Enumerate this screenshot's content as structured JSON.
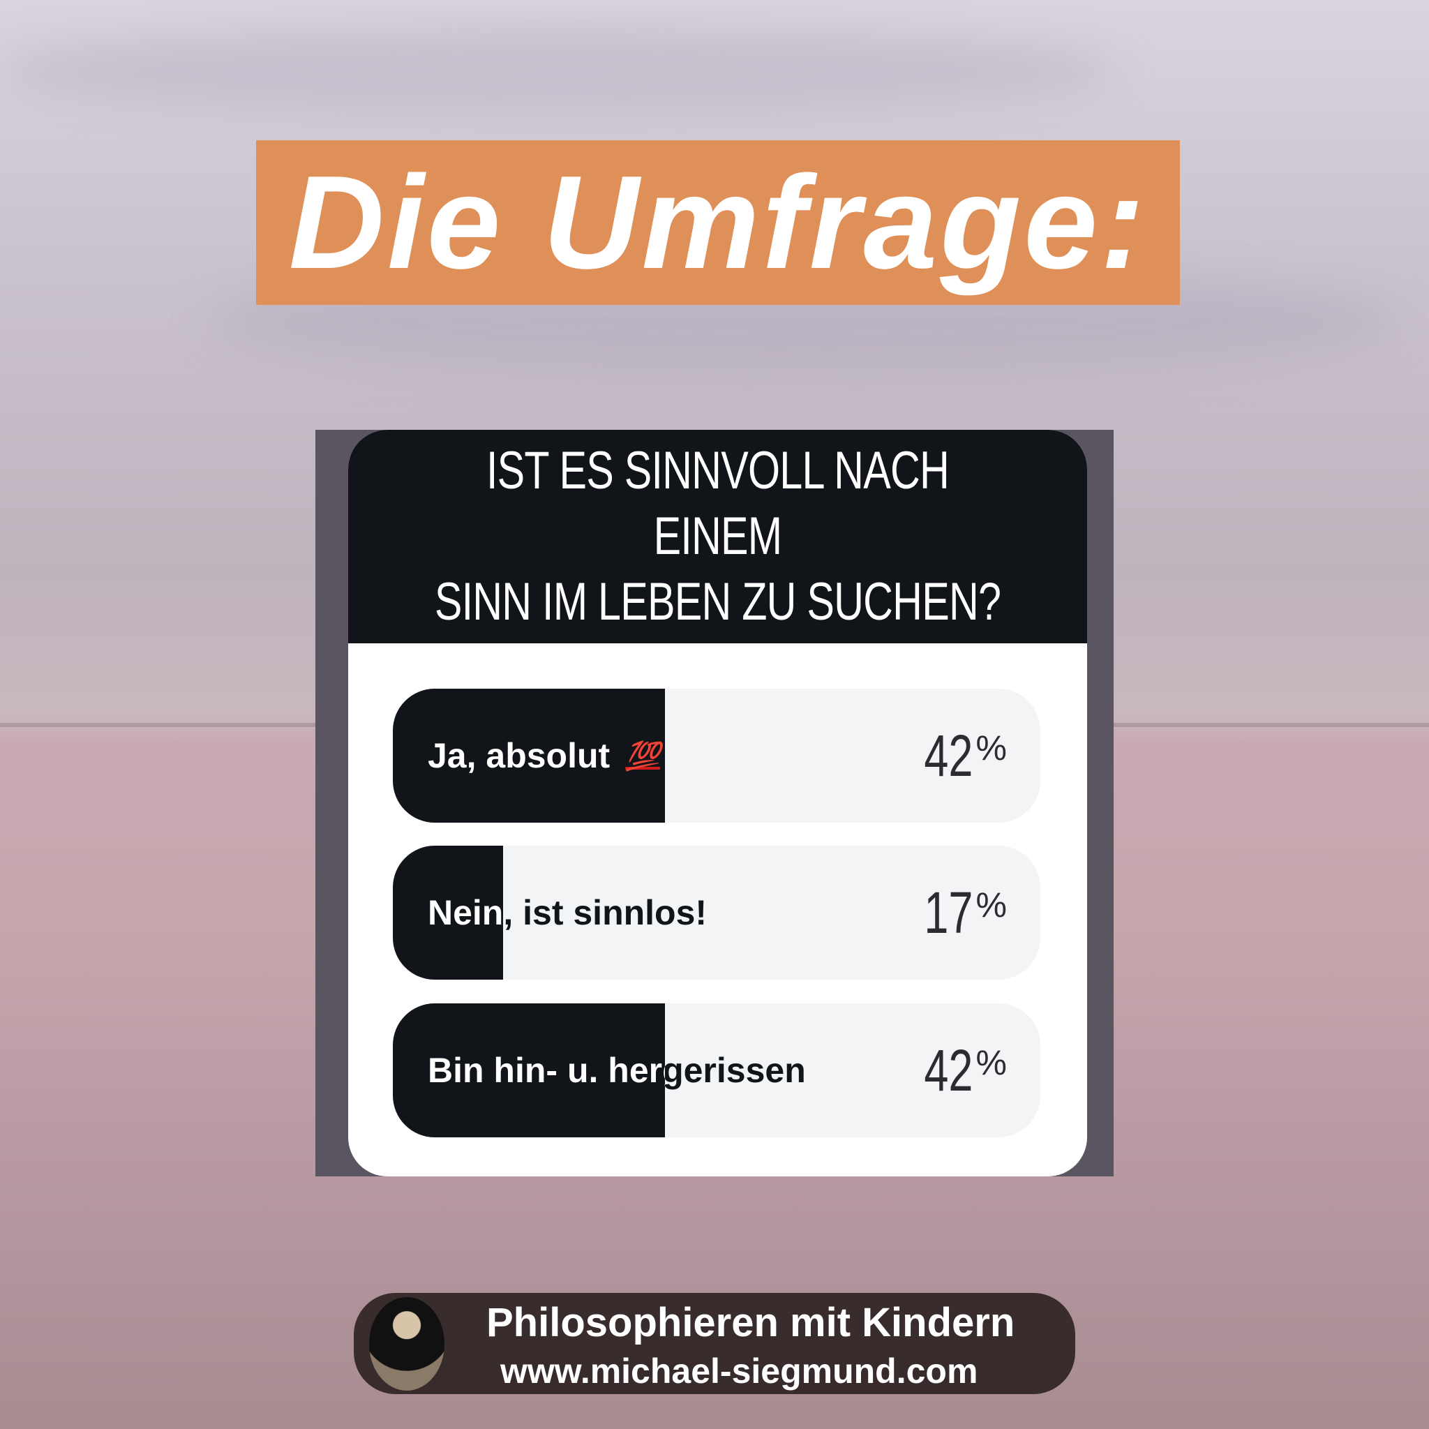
{
  "title": "Die Umfrage:",
  "poll": {
    "question": "IST ES SINNVOLL NACH EINEM\nSINN IM LEBEN ZU SUCHEN?",
    "options": [
      {
        "label": "Ja, absolut",
        "emoji": "💯",
        "percent": 42,
        "percent_text": "42",
        "unit": "%"
      },
      {
        "label": "Nein, ist sinnlos!",
        "percent": 17,
        "percent_text": "17",
        "unit": "%"
      },
      {
        "label": "Bin hin- u. hergerissen",
        "percent": 42,
        "percent_text": "42",
        "unit": "%"
      }
    ],
    "colors": {
      "fill": "#111419",
      "track": "#f3f4f6",
      "title_bg": "#df9058"
    }
  },
  "footer": {
    "line1": "Philosophieren mit Kindern",
    "line2": "www.michael-siegmund.com"
  }
}
